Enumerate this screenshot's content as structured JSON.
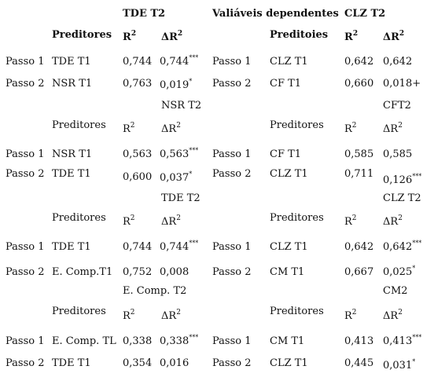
{
  "header": {
    "title_left": "TDE T2",
    "title_mid": "Valiáveis dependentes",
    "title_right": "CLZ T2",
    "pred_left": "Preditores",
    "pred_right": "Preditoies",
    "r2": "R",
    "r2_exp": "2",
    "delta": "ΔR",
    "delta_exp": "2"
  },
  "labels": {
    "preditores": "Preditores",
    "r2": "R",
    "r2_exp": "2",
    "delta": "ΔR",
    "delta_exp": "2"
  },
  "block1": {
    "rows": [
      {
        "step_l": "Passo 1",
        "pred_l": "TDE T1",
        "r2_l": "0,744",
        "dr2_l": "0,744",
        "sig_l": "***",
        "step_r": "Passo 1",
        "pred_r": "CLZ T1",
        "r2_r": "0,642",
        "dr2_r": "0,642",
        "sig_r": ""
      },
      {
        "step_l": "Passo 2",
        "pred_l": "NSR T1",
        "r2_l": "0,763",
        "dr2_l": "0,019",
        "sig_l": "*",
        "step_r": "Passo 2",
        "pred_r": "CF T1",
        "r2_r": "0,660",
        "dr2_r": "0,018+",
        "sig_r": ""
      }
    ]
  },
  "block2": {
    "dep_left": "NSR T2",
    "dep_right": "CFT2",
    "rows": [
      {
        "step_l": "Passo 1",
        "pred_l": "NSR T1",
        "r2_l": "0,563",
        "dr2_l": "0,563",
        "sig_l": "***",
        "step_r": "Passo 1",
        "pred_r": "CF T1",
        "r2_r": "0,585",
        "dr2_r": "0,585",
        "sig_r": ""
      },
      {
        "step_l": "Passo 2",
        "pred_l": "TDE T1",
        "r2_l": "0,600",
        "dr2_l": "0,037",
        "sig_l": "*",
        "step_r": "Passo 2",
        "pred_r": "CLZ T1",
        "r2_r": "0,711",
        "dr2_r": "0,126",
        "sig_r": "***"
      }
    ]
  },
  "block3": {
    "dep_left": "TDE T2",
    "dep_right": "CLZ T2",
    "rows": [
      {
        "step_l": "Passo 1",
        "pred_l": "TDE T1",
        "r2_l": "0,744",
        "dr2_l": "0,744",
        "sig_l": "***",
        "step_r": "Passo 1",
        "pred_r": "CLZ T1",
        "r2_r": "0,642",
        "dr2_r": "0,642",
        "sig_r": "***"
      },
      {
        "step_l": "Passo 2",
        "pred_l": "E. Comp.T1",
        "r2_l": "0,752",
        "dr2_l": "0,008",
        "sig_l": "",
        "step_r": "Passo 2",
        "pred_r": "CM T1",
        "r2_r": "0,667",
        "dr2_r": "0,025",
        "sig_r": "*"
      }
    ]
  },
  "block4": {
    "dep_left": "E. Comp. T2",
    "dep_right": "CM2",
    "rows": [
      {
        "step_l": "Passo 1",
        "pred_l": "E. Comp. TL",
        "r2_l": "0,338",
        "dr2_l": "0,338",
        "sig_l": "***",
        "step_r": "Passo 1",
        "pred_r": "CM T1",
        "r2_r": "0,413",
        "dr2_r": "0,413",
        "sig_r": "***"
      },
      {
        "step_l": "Passo 2",
        "pred_l": "TDE T1",
        "r2_l": "0,354",
        "dr2_l": "0,016",
        "sig_l": "",
        "step_r": "Passo 2",
        "pred_r": "CLZ T1",
        "r2_r": "0,445",
        "dr2_r": "0,031",
        "sig_r": "*"
      }
    ]
  }
}
